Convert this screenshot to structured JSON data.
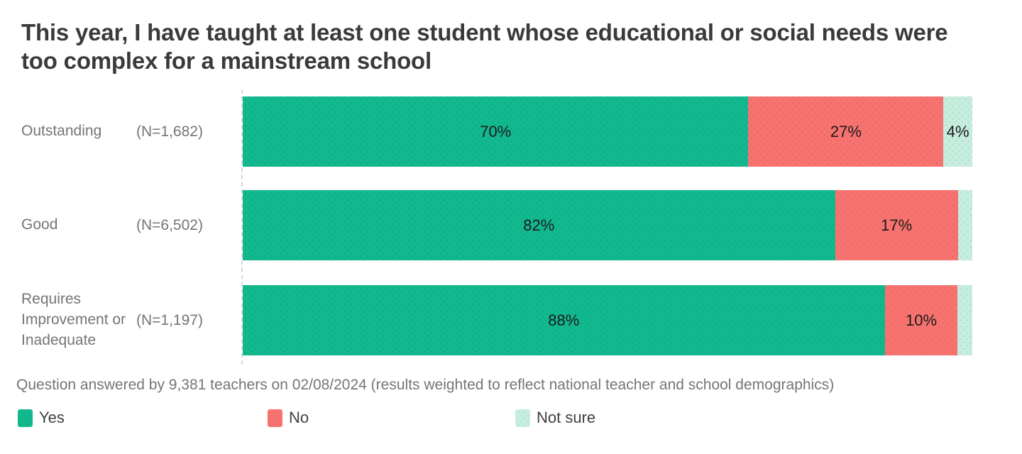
{
  "title": "This year, I have taught at least one student whose educational or social needs were too complex for a mainstream school",
  "footnote": "Question answered by 9,381 teachers on 02/08/2024 (results weighted to reflect national teacher and school demographics)",
  "colors": {
    "yes": "#12b98e",
    "no": "#f8736f",
    "not_sure": "#c6eede",
    "title_text": "#3a3a3a",
    "axis_text": "#757575",
    "bar_label_text": "#1b1b1b",
    "baseline_dash": "#d8d8d8"
  },
  "chart_data": {
    "type": "bar",
    "orientation": "horizontal",
    "stacked": true,
    "unit": "%",
    "title": "This year, I have taught at least one student whose educational or social needs were too complex for a mainstream school",
    "categories": [
      "Outstanding",
      "Good",
      "Requires Improvement or Inadequate"
    ],
    "sample_sizes": [
      "(N=1,682)",
      "(N=6,502)",
      "(N=1,197)"
    ],
    "series": [
      {
        "name": "Yes",
        "color": "#12b98e",
        "values": [
          70,
          82,
          88
        ],
        "labels": [
          "70%",
          "82%",
          "88%"
        ]
      },
      {
        "name": "No",
        "color": "#f8736f",
        "values": [
          27,
          17,
          10
        ],
        "labels": [
          "27%",
          "17%",
          "10%"
        ]
      },
      {
        "name": "Not sure",
        "color": "#c6eede",
        "values": [
          4,
          2,
          2
        ],
        "labels": [
          "4%",
          "",
          ""
        ]
      }
    ],
    "xlim": [
      0,
      100
    ],
    "grid": false,
    "legend_position": "bottom"
  }
}
